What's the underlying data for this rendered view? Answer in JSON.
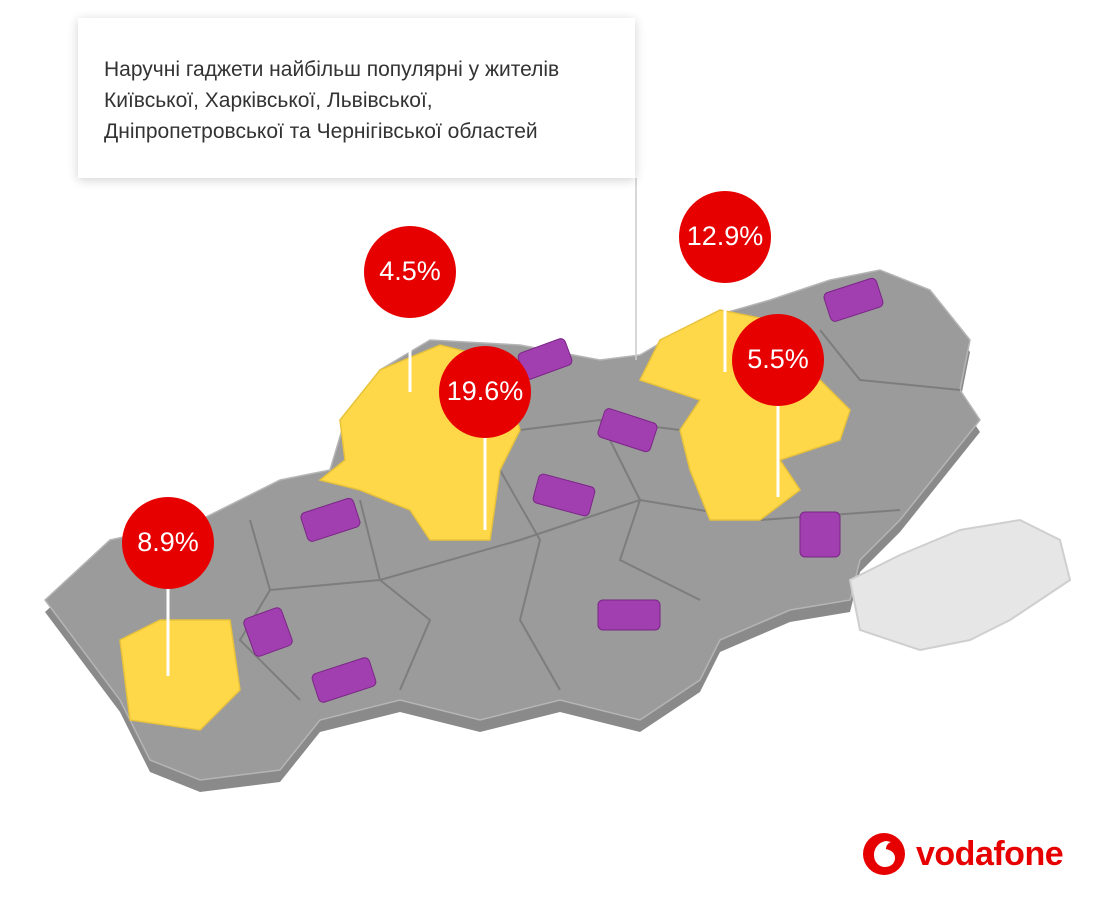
{
  "caption": {
    "lines": [
      "Наручні гаджети найбільш популярні у жителів",
      "Київської, Харківської, Львівської,",
      "Дніпропетровської та Чернігівської областей"
    ]
  },
  "markers": [
    {
      "label": "4.5%"
    },
    {
      "label": "19.6%"
    },
    {
      "label": "12.9%"
    },
    {
      "label": "5.5%"
    },
    {
      "label": "8.9%"
    }
  ],
  "brand": {
    "name": "vodafone"
  }
}
